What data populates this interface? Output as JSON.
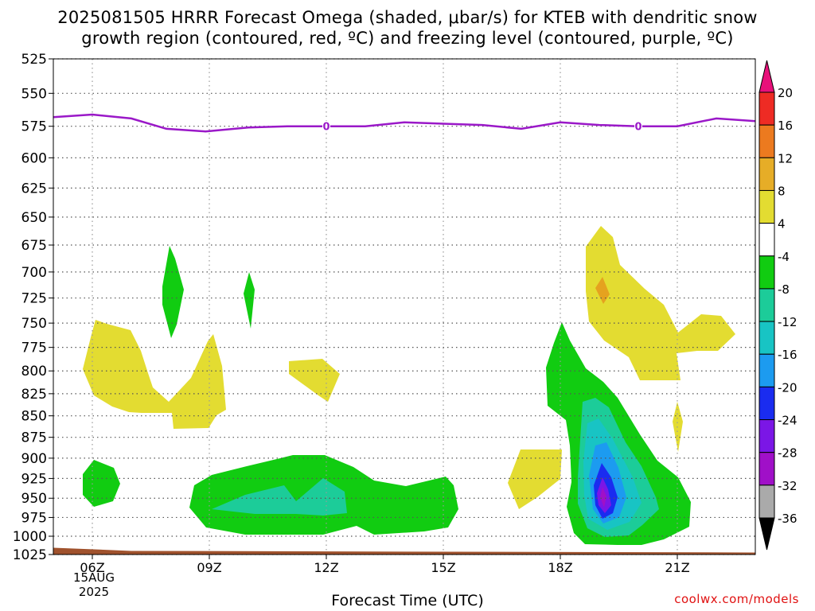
{
  "header": {
    "title_line1": "2025081505 HRRR Forecast Omega (shaded, μbar/s) for KTEB with dendritic snow",
    "title_line2": "growth region (contoured, red, ºC) and freezing level (contoured, purple, ºC)"
  },
  "footer": {
    "xlabel": "Forecast Time (UTC)",
    "credit": "coolwx.com/models",
    "date_line1": "15AUG",
    "date_line2": "2025"
  },
  "colors": {
    "green": "#11cc11",
    "teal": "#1ccc99",
    "cyan": "#18c4c4",
    "sky": "#1c9bf0",
    "blue": "#1a2cf0",
    "violet": "#7b16e6",
    "purple": "#a010c8",
    "yellow": "#e3dc31",
    "orange": "#e5a21f",
    "freezing_line": "#9a18c8",
    "terrain": "#a0522d"
  },
  "chart_data": {
    "type": "heatmap",
    "title": "2025081505 HRRR Forecast Omega (shaded, μbar/s) for KTEB with dendritic snow growth region (contoured, red, ºC) and freezing level (contoured, purple, ºC)",
    "xlabel": "Forecast Time (UTC)",
    "ylabel": "",
    "x_ticks": [
      "06Z",
      "09Z",
      "12Z",
      "15Z",
      "18Z",
      "21Z"
    ],
    "x_tick_hours": [
      6,
      9,
      12,
      15,
      18,
      21
    ],
    "xlim": [
      5,
      23
    ],
    "y_ticks": [
      525,
      550,
      575,
      600,
      625,
      650,
      675,
      700,
      725,
      750,
      775,
      800,
      825,
      850,
      875,
      900,
      925,
      950,
      975,
      1000,
      1025
    ],
    "ylim": [
      1025,
      525
    ],
    "y_scale": "log-pressure",
    "grid": true,
    "colorbar": {
      "labels": [
        "20",
        "16",
        "12",
        "8",
        "4",
        "-4",
        "-8",
        "-12",
        "-16",
        "-20",
        "-24",
        "-28",
        "-32",
        "-36"
      ],
      "colors": [
        "#e8107a",
        "#ee2b24",
        "#ec7a1f",
        "#e6ad27",
        "#e3dc31",
        "#ffffff",
        "#11cc11",
        "#1ccc99",
        "#18c4c4",
        "#1c9bf0",
        "#1a2cf0",
        "#7b16e6",
        "#a010c8",
        "#aaaaaa",
        "#000000"
      ]
    },
    "freezing_level": {
      "label": "0",
      "hours": [
        5,
        6,
        7,
        7.9,
        8.9,
        10,
        11,
        12,
        13,
        14,
        15,
        16,
        17,
        18,
        19,
        20,
        21,
        22,
        23
      ],
      "pressure": [
        568,
        566,
        569,
        577,
        579,
        576,
        575,
        575,
        575,
        572,
        573,
        574,
        577,
        572,
        574,
        575,
        575,
        569,
        571
      ]
    },
    "terrain_pressure": [
      1020,
      1025
    ]
  }
}
